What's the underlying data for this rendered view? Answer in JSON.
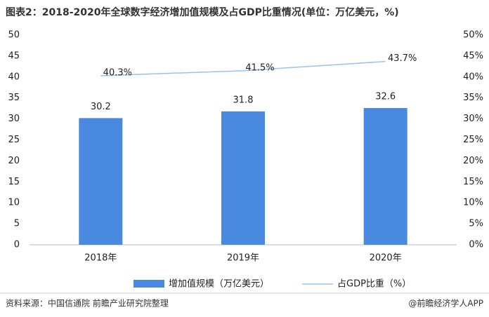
{
  "chart_data": {
    "type": "bar",
    "title": "图表2：2018-2020年全球数字经济增加值规模及占GDP比重情况(单位：万亿美元，%)",
    "categories": [
      "2018年",
      "2019年",
      "2020年"
    ],
    "series": [
      {
        "name": "增加值规模（万亿美元）",
        "type": "bar",
        "color": "#4a89e0",
        "values": [
          30.2,
          31.8,
          32.6
        ]
      },
      {
        "name": "占GDP比重（%）",
        "type": "line",
        "axis": "y2",
        "color": "#9cc3ea",
        "values": [
          40.3,
          41.5,
          43.7
        ],
        "value_labels": [
          "40.3%",
          "41.5%",
          "43.7%"
        ]
      }
    ],
    "ylim": [
      0,
      50
    ],
    "yticks": [
      0,
      5,
      10,
      15,
      20,
      25,
      30,
      35,
      40,
      45,
      50
    ],
    "y2lim": [
      0,
      50
    ],
    "y2ticks": [
      {
        "value": 0,
        "label": "0%"
      },
      {
        "value": 5,
        "label": "5%"
      },
      {
        "value": 10,
        "label": "10%"
      },
      {
        "value": 15,
        "label": "15%"
      },
      {
        "value": 20,
        "label": "20%"
      },
      {
        "value": 25,
        "label": "25%"
      },
      {
        "value": 30,
        "label": "30%"
      },
      {
        "value": 35,
        "label": "35%"
      },
      {
        "value": 40,
        "label": "40%"
      },
      {
        "value": 45,
        "label": "45%"
      },
      {
        "value": 50,
        "label": "50%"
      }
    ],
    "grid": false,
    "legend": "bottom",
    "source": "资料来源：中国信通院 前瞻产业研究院整理",
    "credit": "@前瞻经济学人APP"
  }
}
